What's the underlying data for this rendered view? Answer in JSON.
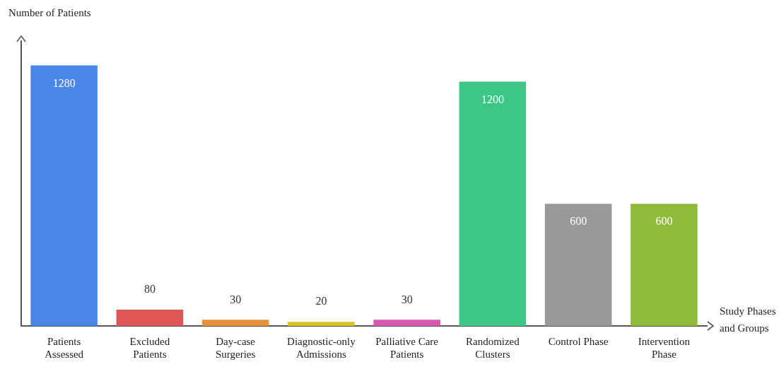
{
  "chart_data": {
    "type": "bar",
    "xlabel": "Study Phases and Groups",
    "ylabel": "Number of Patients",
    "categories": [
      "Patients Assessed",
      "Excluded Patients",
      "Day-case Surgeries",
      "Diagnostic-only Admissions",
      "Palliative Care Patients",
      "Randomized Clusters",
      "Control Phase",
      "Intervention Phase"
    ],
    "values": [
      1280,
      80,
      30,
      20,
      30,
      1200,
      600,
      600
    ],
    "colors": [
      "#4a86e8",
      "#e05555",
      "#e69138",
      "#d9c227",
      "#d957b0",
      "#3dc785",
      "#999999",
      "#8fba3a"
    ],
    "data_labels": true,
    "grid": false,
    "legend": false
  }
}
